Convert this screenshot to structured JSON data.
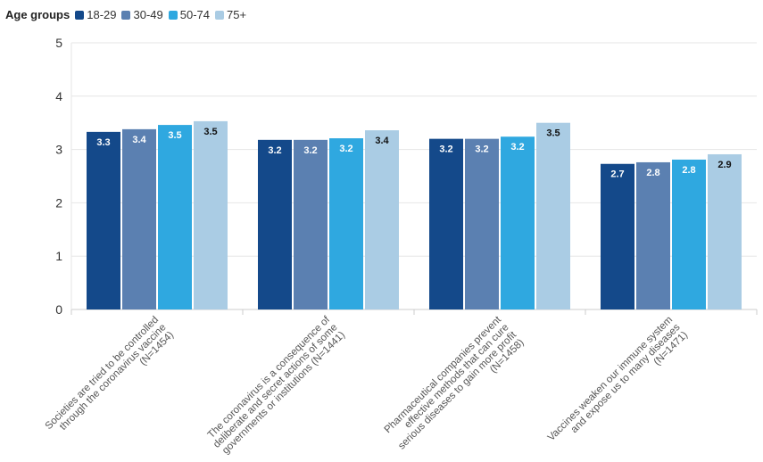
{
  "chart_data": {
    "type": "bar",
    "legend_title": "Age groups",
    "legend_position": "top-left",
    "categories": [
      [
        "Societies are tried to be controlled",
        "through the coronavirus vaccine",
        "(N=1454)"
      ],
      [
        "The coronavirus is a consequence of",
        "deliberate and secret actions of some",
        "governments or institutions (N=1441)"
      ],
      [
        "Pharmaceutical companies prevent",
        "effective methods that can cure",
        "serious diseases to gain more profit",
        "(N=1458)"
      ],
      [
        "Vaccines weaken our immune system",
        "and expose us to many diseases",
        "(N=1471)"
      ]
    ],
    "series": [
      {
        "name": "18-29",
        "color": "#14498a",
        "values": [
          3.33,
          3.18,
          3.2,
          2.73
        ],
        "labels": [
          "3.3",
          "3.2",
          "3.2",
          "2.7"
        ]
      },
      {
        "name": "30-49",
        "color": "#5b80b1",
        "values": [
          3.38,
          3.18,
          3.2,
          2.76
        ],
        "labels": [
          "3.4",
          "3.2",
          "3.2",
          "2.8"
        ]
      },
      {
        "name": "50-74",
        "color": "#2fa8e0",
        "values": [
          3.46,
          3.21,
          3.24,
          2.81
        ],
        "labels": [
          "3.5",
          "3.2",
          "3.2",
          "2.8"
        ]
      },
      {
        "name": "75+",
        "color": "#aacce4",
        "values": [
          3.53,
          3.36,
          3.5,
          2.91
        ],
        "labels": [
          "3.5",
          "3.4",
          "3.5",
          "2.9"
        ]
      }
    ],
    "ylim": [
      0,
      5
    ],
    "yticks": [
      "0",
      "1",
      "2",
      "3",
      "4",
      "5"
    ],
    "grid": true
  }
}
